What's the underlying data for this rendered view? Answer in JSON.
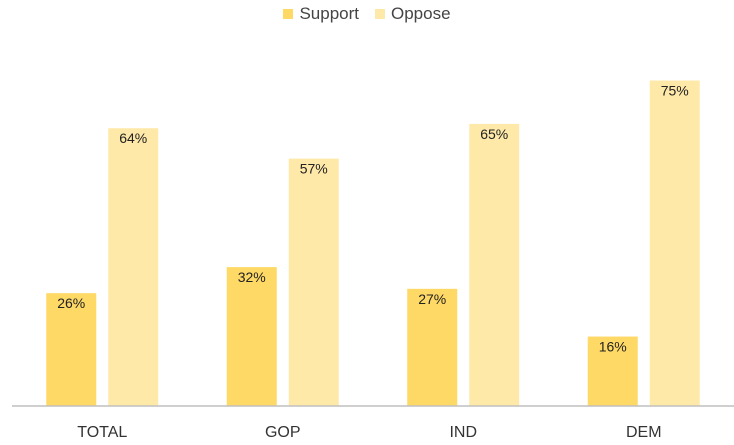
{
  "chart_data": {
    "type": "bar",
    "categories": [
      "TOTAL",
      "GOP",
      "IND",
      "DEM"
    ],
    "series": [
      {
        "name": "Support",
        "color": "#FFD966",
        "values": [
          26,
          32,
          27,
          16
        ],
        "labels": [
          "26%",
          "32%",
          "27%",
          "16%"
        ]
      },
      {
        "name": "Oppose",
        "color": "#FFE9A8",
        "values": [
          64,
          57,
          65,
          75
        ],
        "labels": [
          "64%",
          "57%",
          "65%",
          "75%"
        ]
      }
    ],
    "ylim": [
      0,
      80
    ],
    "grid": false,
    "legend_position": "top-center"
  }
}
